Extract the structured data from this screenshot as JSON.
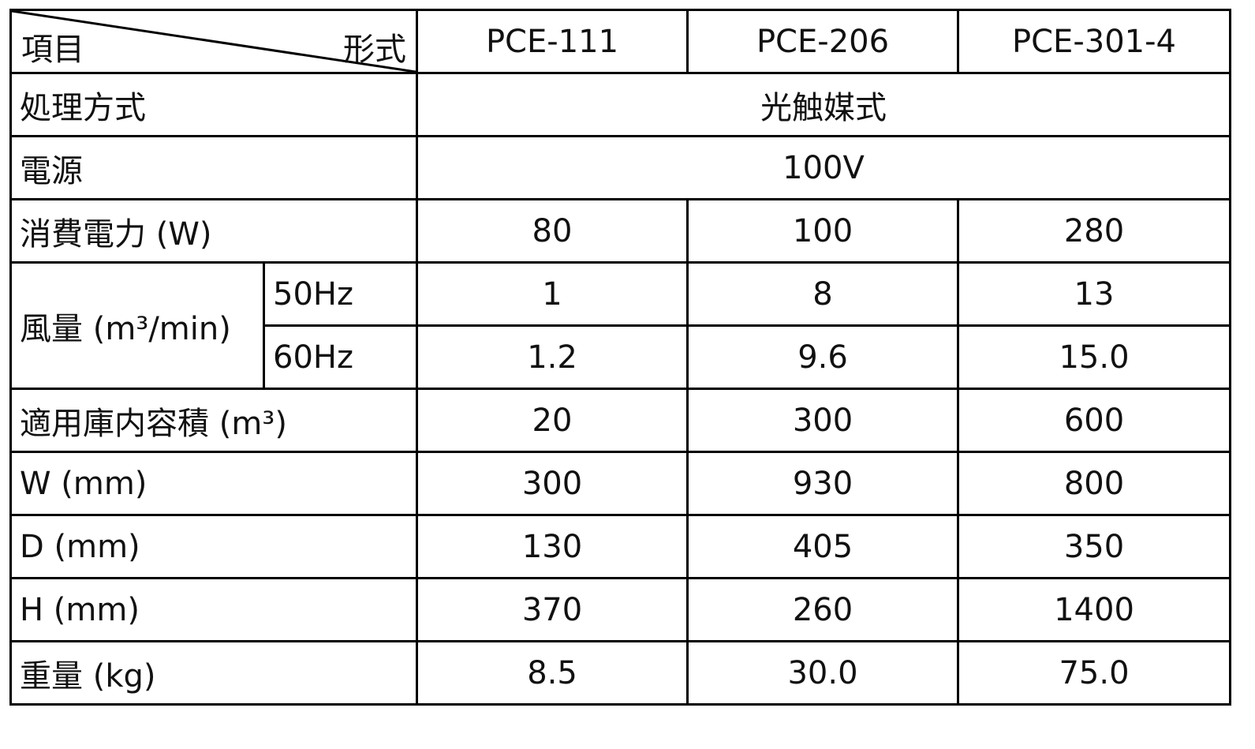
{
  "table": {
    "corner": {
      "left": "項目",
      "right": "形式"
    },
    "models": [
      "PCE-111",
      "PCE-206",
      "PCE-301-4"
    ],
    "rows": [
      {
        "label": "処理方式",
        "value": "光触媒式"
      },
      {
        "label": "電源",
        "value": "100V"
      },
      {
        "label": "消費電力 (W)",
        "values": [
          "80",
          "100",
          "280"
        ]
      },
      {
        "label": "風量 (m³/min)",
        "sub": [
          {
            "label": "50Hz",
            "values": [
              "1",
              "8",
              "13"
            ]
          },
          {
            "label": "60Hz",
            "values": [
              "1.2",
              "9.6",
              "15.0"
            ]
          }
        ]
      },
      {
        "label": "適用庫内容積 (m³)",
        "values": [
          "20",
          "300",
          "600"
        ]
      },
      {
        "label": "W (mm)",
        "values": [
          "300",
          "930",
          "800"
        ]
      },
      {
        "label": "D (mm)",
        "values": [
          "130",
          "405",
          "350"
        ]
      },
      {
        "label": "H (mm)",
        "values": [
          "370",
          "260",
          "1400"
        ]
      },
      {
        "label": "重量 (kg)",
        "values": [
          "8.5",
          "30.0",
          "75.0"
        ]
      }
    ]
  }
}
